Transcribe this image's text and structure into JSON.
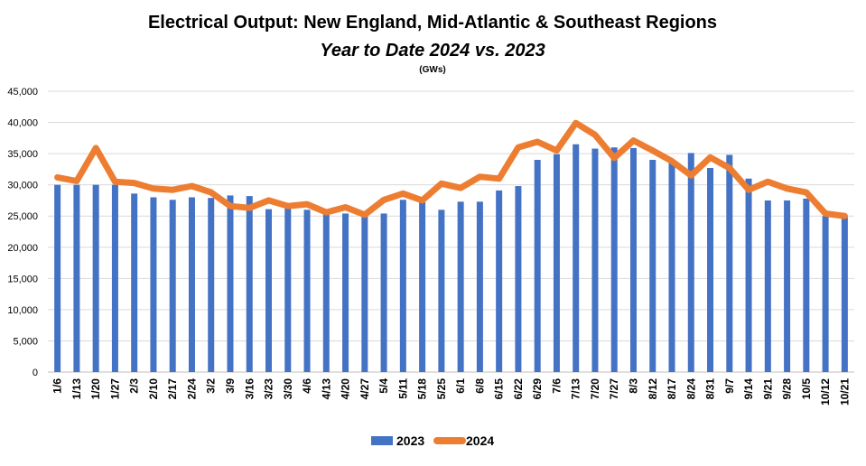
{
  "chart_data": {
    "type": "bar",
    "title": "Electrical Output:  New England, Mid-Atlantic & Southeast Regions",
    "subtitle": "Year to Date 2024 vs. 2023",
    "unit_label": "(GWs)",
    "ylim": [
      0,
      45000
    ],
    "yticks": [
      "0",
      "5,000",
      "10,000",
      "15,000",
      "20,000",
      "25,000",
      "30,000",
      "35,000",
      "40,000",
      "45,000"
    ],
    "grid": true,
    "legend_position": "bottom",
    "categories": [
      "1/6",
      "1/13",
      "1/20",
      "1/27",
      "2/3",
      "2/10",
      "2/17",
      "2/24",
      "3/2",
      "3/9",
      "3/16",
      "3/23",
      "3/30",
      "4/6",
      "4/13",
      "4/20",
      "4/27",
      "5/4",
      "5/11",
      "5/18",
      "5/25",
      "6/1",
      "6/8",
      "6/15",
      "6/22",
      "6/29",
      "7/6",
      "7/13",
      "7/20",
      "7/27",
      "8/3",
      "8/12",
      "8/17",
      "8/24",
      "8/31",
      "9/7",
      "9/14",
      "9/21",
      "9/28",
      "10/5",
      "10/12",
      "10/21"
    ],
    "series": [
      {
        "name": "2023",
        "kind": "bar",
        "color": "#4472C4",
        "values": [
          30000,
          30000,
          30000,
          30000,
          28600,
          28000,
          27600,
          28000,
          27900,
          28300,
          28200,
          26100,
          26200,
          26000,
          25600,
          25400,
          25000,
          25400,
          27600,
          27200,
          26000,
          27300,
          27300,
          29100,
          29800,
          34000,
          34900,
          36500,
          35800,
          36000,
          35900,
          34000,
          33600,
          35100,
          32700,
          34800,
          31000,
          27500,
          27500,
          27800,
          25000,
          24900
        ]
      },
      {
        "name": "2024",
        "kind": "line",
        "color": "#ED7D31",
        "values": [
          31200,
          30600,
          35900,
          30500,
          30300,
          29400,
          29200,
          29800,
          28800,
          26600,
          26300,
          27500,
          26600,
          26900,
          25600,
          26400,
          25200,
          27600,
          28600,
          27500,
          30200,
          29500,
          31300,
          31000,
          36000,
          36900,
          35500,
          39900,
          38000,
          34300,
          37100,
          35500,
          33800,
          31500,
          34400,
          32700,
          29200,
          30500,
          29400,
          28800,
          25400,
          25000
        ]
      }
    ]
  }
}
